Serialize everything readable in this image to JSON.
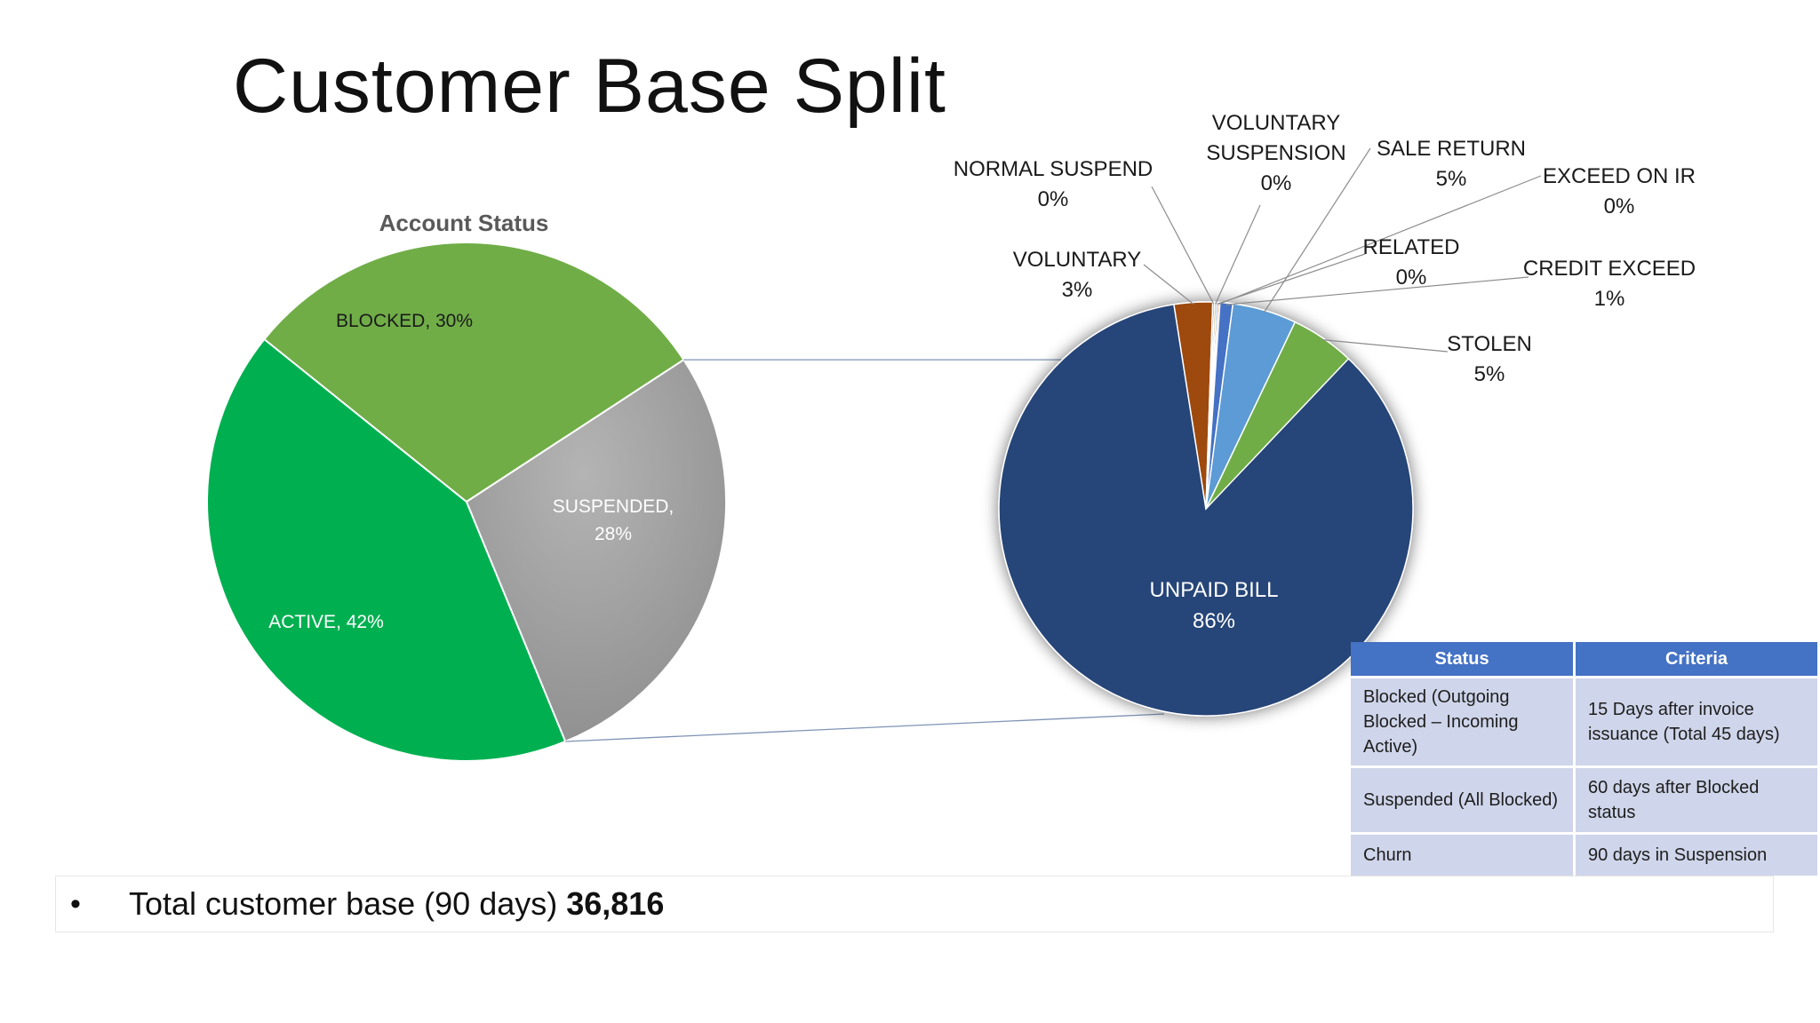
{
  "slide": {
    "title": "Customer Base Split"
  },
  "chart_data": [
    {
      "type": "pie",
      "title": "Account Status",
      "categories": [
        "BLOCKED",
        "SUSPENDED",
        "ACTIVE"
      ],
      "values": [
        30,
        28,
        42
      ],
      "labels": [
        "BLOCKED, 30%",
        "SUSPENDED,\n28%",
        "ACTIVE, 42%"
      ],
      "colors": [
        "#70ad47",
        "#a5a5a5",
        "#00b050"
      ]
    },
    {
      "type": "pie",
      "title": "",
      "categories": [
        "UNPAID BILL",
        "VOLUNTARY",
        "NORMAL SUSPEND",
        "VOLUNTARY SUSPENSION",
        "RELATED",
        "SALE RETURN",
        "STOLEN",
        "CREDIT EXCEED",
        "EXCEED ON IR"
      ],
      "values": [
        86,
        3,
        0,
        0,
        0,
        5,
        5,
        1,
        0
      ],
      "value_labels": [
        "86%",
        "3%",
        "0%",
        "0%",
        "0%",
        "5%",
        "5%",
        "1%",
        "0%"
      ],
      "colors": [
        "#264478",
        "#9e480e",
        "#636363",
        "#997300",
        "#255e91",
        "#5b9bd5",
        "#70ad47",
        "#4472c4",
        "#ed7d31"
      ]
    }
  ],
  "criteria_table": {
    "headers": [
      "Status",
      "Criteria"
    ],
    "rows": [
      [
        "Blocked (Outgoing Blocked – Incoming Active)",
        "15 Days after invoice issuance (Total 45 days)"
      ],
      [
        "Suspended (All Blocked)",
        "60 days after Blocked status"
      ],
      [
        "Churn",
        "90 days in Suspension"
      ]
    ]
  },
  "summary": {
    "bullet": "•",
    "text": "Total customer base (90 days)",
    "value": "36,816"
  }
}
